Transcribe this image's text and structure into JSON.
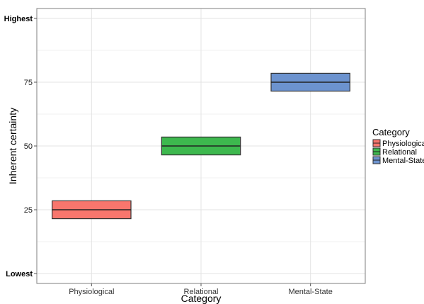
{
  "chart_data": {
    "type": "boxplot",
    "xlabel": "Category",
    "ylabel": "Inherent  certainty",
    "categories": [
      "Physiological",
      "Relational",
      "Mental-State"
    ],
    "ylim": [
      0,
      100
    ],
    "yticks": [
      {
        "value": 100,
        "label": "Highest",
        "emphasis": true
      },
      {
        "value": 75,
        "label": "75",
        "emphasis": false
      },
      {
        "value": 50,
        "label": "50",
        "emphasis": false
      },
      {
        "value": 25,
        "label": "25",
        "emphasis": false
      },
      {
        "value": 0,
        "label": "Lowest",
        "emphasis": true
      }
    ],
    "boxes": [
      {
        "category": "Physiological",
        "q1": 21.5,
        "median": 25,
        "q3": 28.5,
        "color": "#F8766D"
      },
      {
        "category": "Relational",
        "q1": 46.5,
        "median": 50,
        "q3": 53.5,
        "color": "#3DB84E"
      },
      {
        "category": "Mental-State",
        "q1": 71.5,
        "median": 75,
        "q3": 78.5,
        "color": "#6C93CF"
      }
    ],
    "grid": true,
    "legend": {
      "title": "Category",
      "position": "right",
      "items": [
        {
          "label": "Physiological",
          "color": "#F8766D"
        },
        {
          "label": "Relational",
          "color": "#3DB84E"
        },
        {
          "label": "Mental-State",
          "color": "#6C93CF"
        }
      ]
    }
  }
}
